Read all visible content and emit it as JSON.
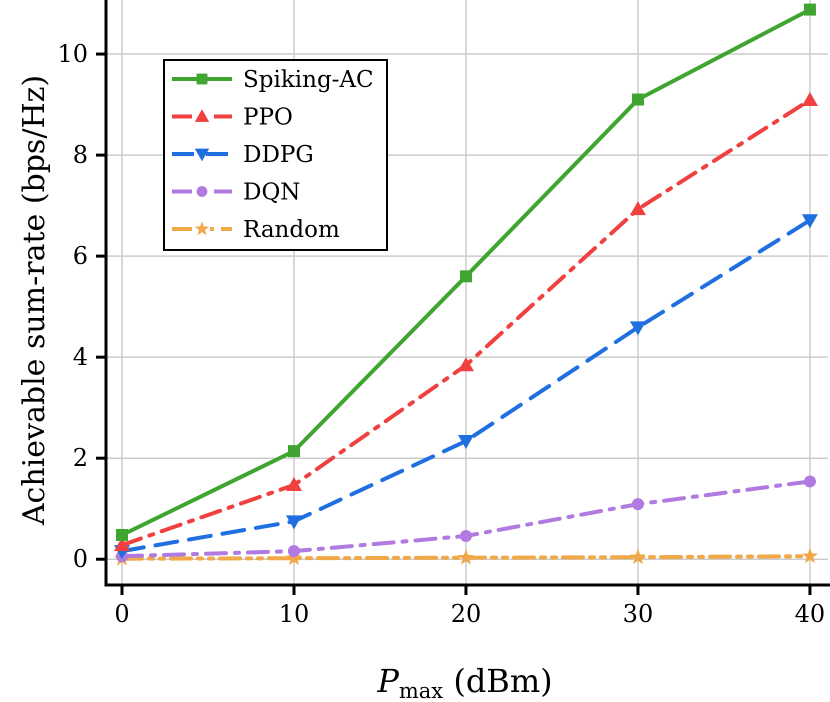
{
  "chart_data": {
    "type": "line",
    "title": "",
    "xlabel_main": "P",
    "xlabel_sub": "max",
    "xlabel_unit": " (dBm)",
    "ylabel": "Achievable sum-rate (bps/Hz)",
    "x": [
      0,
      10,
      20,
      30,
      40
    ],
    "xlim": [
      -0.93,
      41.05
    ],
    "ylim": [
      -0.51,
      11.07
    ],
    "xticks": [
      0,
      10,
      20,
      30,
      40
    ],
    "yticks": [
      0,
      2,
      4,
      6,
      8,
      10
    ],
    "grid": true,
    "legend_position": "upper-left",
    "series": [
      {
        "name": "Spiking-AC",
        "values": [
          0.48,
          2.14,
          5.6,
          9.1,
          10.88
        ],
        "color": "#3fa530",
        "dash": "solid",
        "marker": "square"
      },
      {
        "name": "PPO",
        "values": [
          0.28,
          1.47,
          3.84,
          6.93,
          9.09
        ],
        "color": "#f04040",
        "dash": "dashdot",
        "marker": "triangle-up"
      },
      {
        "name": "DDPG",
        "values": [
          0.16,
          0.75,
          2.34,
          4.59,
          6.71
        ],
        "color": "#1f6fe0",
        "dash": "dashed",
        "marker": "triangle-down"
      },
      {
        "name": "DQN",
        "values": [
          0.06,
          0.16,
          0.46,
          1.09,
          1.54
        ],
        "color": "#b07ae0",
        "dash": "dashdot",
        "marker": "circle"
      },
      {
        "name": "Random",
        "values": [
          0.01,
          0.02,
          0.03,
          0.04,
          0.06
        ],
        "color": "#f0a848",
        "dash": "dashdotdot",
        "marker": "star"
      }
    ]
  }
}
